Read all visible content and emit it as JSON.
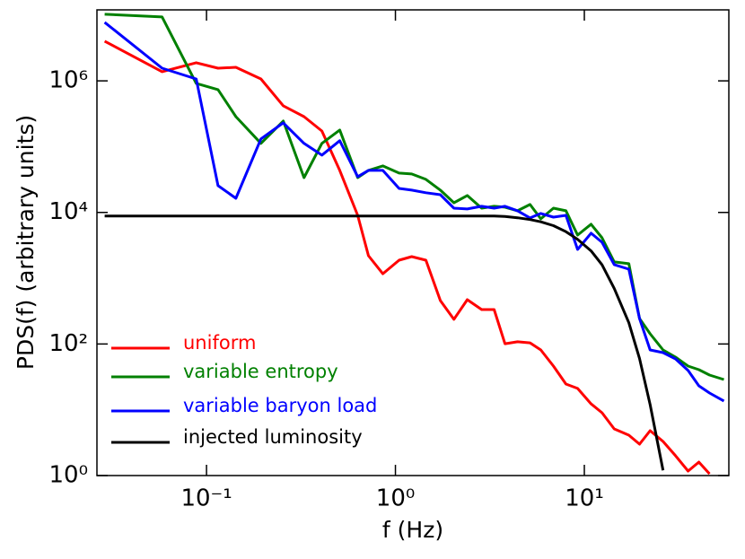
{
  "chart_data": {
    "type": "line",
    "xlabel": "f (Hz)",
    "ylabel": "PDS(f) (arbitrary units)",
    "xscale": "log",
    "yscale": "log",
    "xlim": [
      0.0263,
      58.2
    ],
    "ylim": [
      1,
      12000000
    ],
    "xticks": [
      {
        "value": 0.1,
        "label": "10⁻¹"
      },
      {
        "value": 1,
        "label": "10⁰"
      },
      {
        "value": 10,
        "label": "10¹"
      }
    ],
    "yticks": [
      {
        "value": 1,
        "label": "10⁰"
      },
      {
        "value": 100,
        "label": "10²"
      },
      {
        "value": 10000,
        "label": "10⁴"
      },
      {
        "value": 1000000,
        "label": "10⁶"
      }
    ],
    "legend": "lower left",
    "x": [
      0.0289,
      0.0582,
      0.0882,
      0.115,
      0.143,
      0.194,
      0.255,
      0.328,
      0.408,
      0.507,
      0.631,
      0.72,
      0.858,
      1.045,
      1.22,
      1.45,
      1.73,
      2.04,
      2.4,
      2.86,
      3.33,
      3.8,
      4.43,
      5.16,
      5.88,
      6.86,
      7.99,
      9.21,
      10.85,
      12.4,
      14.4,
      17.2,
      19.6,
      22.3,
      26.1,
      30.4,
      35.4,
      40.4,
      46.0,
      54.8
    ],
    "series": [
      {
        "name": "uniform",
        "color": "#ff0000",
        "values": [
          4010000,
          1380000,
          1890000,
          1560000,
          1610000,
          1070000,
          418000,
          286000,
          173000,
          43500,
          9040,
          2200,
          1170,
          1880,
          2130,
          1880,
          457,
          237,
          472,
          334,
          334,
          101,
          108,
          104,
          81.3,
          46.2,
          24.6,
          21.1,
          12.3,
          9.02,
          5.12,
          4.11,
          3.0,
          4.81,
          3.3,
          2.0,
          1.17,
          1.6,
          1.06,
          null
        ]
      },
      {
        "name": "variable entropy",
        "color": "#008000",
        "values": [
          10300000,
          9370000,
          917000,
          735000,
          286000,
          112000,
          245000,
          33800,
          112000,
          179000,
          33800,
          43500,
          50900,
          39600,
          38400,
          31800,
          21800,
          14000,
          18100,
          11600,
          12400,
          12000,
          10600,
          13200,
          7980,
          11600,
          10600,
          4530,
          6610,
          4120,
          1770,
          1660,
          244,
          143,
          81.3,
          63.2,
          46.2,
          40.7,
          33.7,
          28.8
        ]
      },
      {
        "name": "variable baryon load",
        "color": "#0000ff",
        "values": [
          7760000,
          1560000,
          1070000,
          25500,
          16400,
          131000,
          230000,
          112000,
          74300,
          123000,
          34900,
          43500,
          43500,
          23200,
          21800,
          19900,
          18600,
          11600,
          11300,
          12400,
          11600,
          12400,
          10600,
          8240,
          9640,
          8490,
          9040,
          2740,
          4830,
          3520,
          1610,
          1370,
          244,
          81.3,
          74.0,
          59.4,
          39.5,
          23.1,
          18.0,
          13.6
        ]
      },
      {
        "name": "injected luminosity",
        "color": "#000000",
        "values": [
          8800,
          8800,
          8800,
          8800,
          8800,
          8800,
          8800,
          8800,
          8800,
          8800,
          8800,
          8800,
          8800,
          8800,
          8800,
          8800,
          8800,
          8800,
          8800,
          8800,
          8800,
          8700,
          8300,
          7800,
          7200,
          6300,
          5100,
          3900,
          2600,
          1600,
          700,
          210,
          60,
          12,
          1.2,
          null,
          null,
          null,
          null,
          null
        ]
      }
    ]
  }
}
